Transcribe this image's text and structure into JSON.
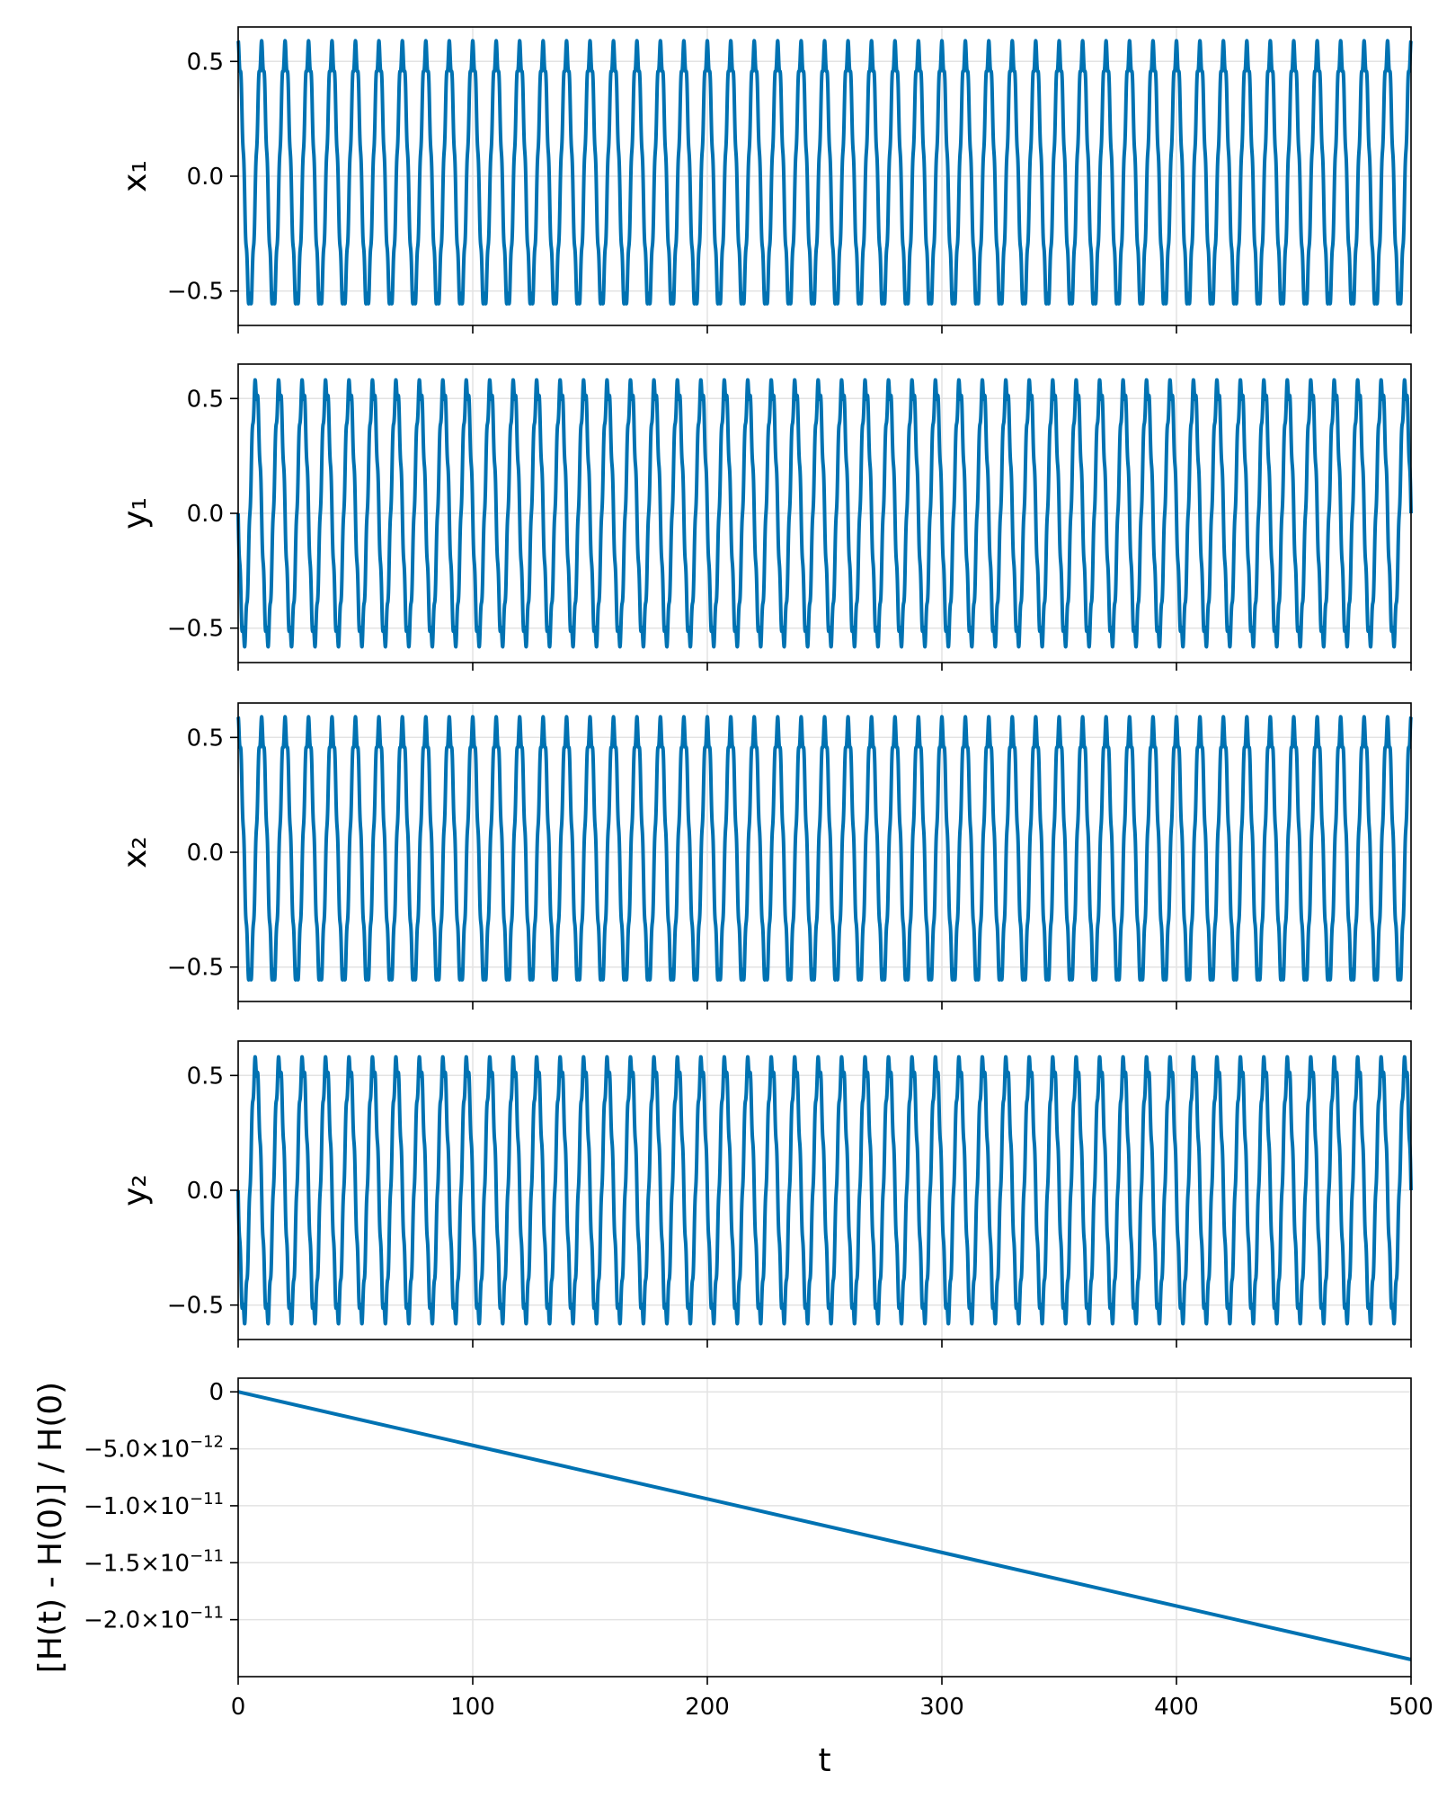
{
  "accent_color": "#0072B2",
  "chart_data": [
    {
      "type": "line",
      "title": "",
      "xlabel": "",
      "ylabel": "x₁",
      "xlim": [
        0,
        500
      ],
      "ylim": [
        -0.65,
        0.65
      ],
      "x_ticks": [
        0,
        100,
        200,
        300,
        400,
        500
      ],
      "x_tick_labels_visible": false,
      "y_ticks": [
        {
          "value": 0.5,
          "label": "0.5"
        },
        {
          "value": 0.0,
          "label": "0.0"
        },
        {
          "value": -0.5,
          "label": "−0.5"
        }
      ],
      "grid": true,
      "series": [
        {
          "color": "#0072B2",
          "x_start": 0,
          "x_end": 500,
          "amplitude": 0.55,
          "ripple_amplitude": 0.04,
          "period": 10.0,
          "ripple_period": 1.25,
          "initial_value": 0.55,
          "phase": "cosine"
        }
      ]
    },
    {
      "type": "line",
      "title": "",
      "xlabel": "",
      "ylabel": "y₁",
      "xlim": [
        0,
        500
      ],
      "ylim": [
        -0.65,
        0.65
      ],
      "x_ticks": [
        0,
        100,
        200,
        300,
        400,
        500
      ],
      "x_tick_labels_visible": false,
      "y_ticks": [
        {
          "value": 0.5,
          "label": "0.5"
        },
        {
          "value": 0.0,
          "label": "0.0"
        },
        {
          "value": -0.5,
          "label": "−0.5"
        }
      ],
      "grid": true,
      "series": [
        {
          "color": "#0072B2",
          "x_start": 0,
          "x_end": 500,
          "amplitude": 0.55,
          "ripple_amplitude": 0.04,
          "period": 10.0,
          "ripple_period": 1.25,
          "initial_value": 0.0,
          "phase": "negative-sine"
        }
      ]
    },
    {
      "type": "line",
      "title": "",
      "xlabel": "",
      "ylabel": "x₂",
      "xlim": [
        0,
        500
      ],
      "ylim": [
        -0.65,
        0.65
      ],
      "x_ticks": [
        0,
        100,
        200,
        300,
        400,
        500
      ],
      "x_tick_labels_visible": false,
      "y_ticks": [
        {
          "value": 0.5,
          "label": "0.5"
        },
        {
          "value": 0.0,
          "label": "0.0"
        },
        {
          "value": -0.5,
          "label": "−0.5"
        }
      ],
      "grid": true,
      "series": [
        {
          "color": "#0072B2",
          "x_start": 0,
          "x_end": 500,
          "amplitude": 0.55,
          "ripple_amplitude": 0.04,
          "period": 10.0,
          "ripple_period": 1.25,
          "initial_value": 0.55,
          "phase": "cosine"
        }
      ]
    },
    {
      "type": "line",
      "title": "",
      "xlabel": "",
      "ylabel": "y₂",
      "xlim": [
        0,
        500
      ],
      "ylim": [
        -0.65,
        0.65
      ],
      "x_ticks": [
        0,
        100,
        200,
        300,
        400,
        500
      ],
      "x_tick_labels_visible": false,
      "y_ticks": [
        {
          "value": 0.5,
          "label": "0.5"
        },
        {
          "value": 0.0,
          "label": "0.0"
        },
        {
          "value": -0.5,
          "label": "−0.5"
        }
      ],
      "grid": true,
      "series": [
        {
          "color": "#0072B2",
          "x_start": 0,
          "x_end": 500,
          "amplitude": 0.55,
          "ripple_amplitude": 0.04,
          "period": 10.0,
          "ripple_period": 1.25,
          "initial_value": 0.0,
          "phase": "negative-sine"
        }
      ]
    },
    {
      "type": "line",
      "title": "",
      "xlabel": "t",
      "ylabel": "[H(t) - H(0)] / H(0)",
      "xlim": [
        0,
        500
      ],
      "ylim": [
        -2.5e-11,
        1.2e-12
      ],
      "x_ticks": [
        0,
        100,
        200,
        300,
        400,
        500
      ],
      "x_tick_labels_visible": true,
      "x_tick_labels": [
        "0",
        "100",
        "200",
        "300",
        "400",
        "500"
      ],
      "y_ticks": [
        {
          "value": 0,
          "label": "0"
        },
        {
          "value": -5e-12,
          "label": "−5.0×10",
          "exponent": "−12"
        },
        {
          "value": -1e-11,
          "label": "−1.0×10",
          "exponent": "−11"
        },
        {
          "value": -1.5e-11,
          "label": "−1.5×10",
          "exponent": "−11"
        },
        {
          "value": -2e-11,
          "label": "−2.0×10",
          "exponent": "−11"
        }
      ],
      "grid": true,
      "series": [
        {
          "color": "#0072B2",
          "x": [
            0,
            100,
            200,
            300,
            400,
            500
          ],
          "y": [
            0,
            -4.7e-12,
            -9.4e-12,
            -1.41e-11,
            -1.88e-11,
            -2.35e-11
          ]
        }
      ]
    }
  ]
}
